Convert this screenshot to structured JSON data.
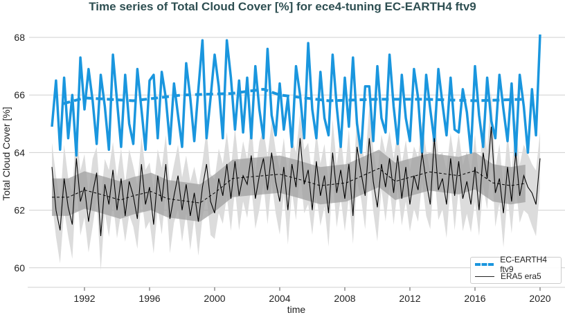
{
  "chart_data": {
    "type": "line",
    "title": "Time series of Total Cloud Cover [%] for ece4-tuning EC-EARTH4 ftv9",
    "xlabel": "time",
    "ylabel": "Total Cloud Cover [%]",
    "xlim": [
      1989.5,
      2021.5
    ],
    "ylim": [
      59.0,
      68.6
    ],
    "x_ticks": [
      "1992",
      "1996",
      "2000",
      "2004",
      "2008",
      "2012",
      "2016",
      "2020"
    ],
    "y_ticks": [
      "60",
      "62",
      "64",
      "66",
      "68"
    ],
    "grid": "horizontal",
    "legend_position": "bottom-right",
    "x_start": 1990.0,
    "x_step_years": 0.25,
    "series": [
      {
        "name": "EC-EARTH4 ftv9",
        "color": "#1a96de",
        "values": [
          64.9,
          66.5,
          64.1,
          66.6,
          64.5,
          66.0,
          63.9,
          67.3,
          65.5,
          66.9,
          65.8,
          64.3,
          66.7,
          65.6,
          64.1,
          67.4,
          65.8,
          64.2,
          66.7,
          65.0,
          64.3,
          66.9,
          65.5,
          64.1,
          66.5,
          66.7,
          64.5,
          66.8,
          65.9,
          64.3,
          66.4,
          65.3,
          64.2,
          67.1,
          65.9,
          64.4,
          66.2,
          67.9,
          64.5,
          65.9,
          67.4,
          66.3,
          64.5,
          67.9,
          66.6,
          64.8,
          66.5,
          64.7,
          66.6,
          64.5,
          67.0,
          65.5,
          64.5,
          67.6,
          65.3,
          64.6,
          66.4,
          64.8,
          65.9,
          64.2,
          67.0,
          66.0,
          64.5,
          67.8,
          65.5,
          64.5,
          66.8,
          65.2,
          64.6,
          67.4,
          65.6,
          64.2,
          66.6,
          64.9,
          67.3,
          65.0,
          64.0,
          66.3,
          66.3,
          64.4,
          67.0,
          65.2,
          64.7,
          67.4,
          65.6,
          64.3,
          66.7,
          65.2,
          64.4,
          66.9,
          65.9,
          64.0,
          66.7,
          65.5,
          64.4,
          66.9,
          65.7,
          64.6,
          66.6,
          64.8,
          64.7,
          66.2,
          65.4,
          64.0,
          67.0,
          65.3,
          64.2,
          66.6,
          65.1,
          64.5,
          66.7,
          65.5,
          64.4,
          66.4,
          63.9,
          66.7,
          65.6,
          64.0,
          66.2,
          64.6,
          68.1
        ],
        "trend": [
          [
            1990.7,
            65.7
          ],
          [
            1992,
            65.9
          ],
          [
            1995,
            65.8
          ],
          [
            1998,
            66.0
          ],
          [
            2001,
            66.05
          ],
          [
            2003,
            66.2
          ],
          [
            2004,
            66.0
          ],
          [
            2007,
            65.8
          ],
          [
            2010,
            65.85
          ],
          [
            2013,
            65.85
          ],
          [
            2016,
            65.8
          ],
          [
            2019,
            65.85
          ]
        ]
      },
      {
        "name": "ERA5 era5",
        "color": "#000000",
        "values": [
          63.5,
          62.0,
          61.3,
          63.1,
          62.1,
          61.5,
          63.8,
          62.3,
          62.8,
          61.6,
          62.6,
          63.3,
          61.1,
          62.9,
          62.2,
          63.4,
          62.0,
          63.1,
          61.8,
          63.0,
          62.5,
          61.7,
          63.6,
          62.2,
          62.8,
          61.5,
          63.2,
          62.3,
          63.6,
          61.7,
          62.5,
          63.2,
          62.0,
          62.9,
          61.8,
          62.6,
          61.6,
          62.8,
          63.6,
          62.3,
          61.9,
          63.1,
          62.5,
          63.6,
          62.4,
          63.7,
          62.5,
          63.2,
          62.9,
          63.9,
          62.4,
          63.2,
          63.8,
          62.7,
          64.0,
          63.0,
          62.3,
          63.5,
          62.0,
          63.6,
          62.8,
          64.5,
          62.9,
          63.4,
          62.0,
          63.7,
          62.5,
          63.2,
          61.9,
          64.0,
          62.6,
          63.4,
          62.4,
          63.6,
          61.8,
          64.2,
          63.3,
          62.5,
          64.5,
          63.0,
          62.1,
          63.6,
          62.8,
          63.8,
          62.6,
          63.9,
          62.4,
          63.5,
          62.2,
          63.2,
          62.7,
          64.0,
          63.0,
          62.2,
          64.5,
          62.7,
          63.1,
          62.2,
          63.8,
          62.5,
          63.7,
          62.4,
          63.0,
          62.2,
          63.5,
          62.0,
          64.0,
          63.1,
          64.9,
          62.6,
          63.1,
          61.9,
          63.5,
          62.3,
          64.0,
          62.5,
          63.2,
          62.8,
          62.6,
          62.2,
          63.8
        ],
        "trend": [
          [
            1990,
            62.45
          ],
          [
            1991,
            62.45
          ],
          [
            1992,
            62.7
          ],
          [
            1993,
            62.55
          ],
          [
            1994.2,
            62.35
          ],
          [
            1995,
            62.5
          ],
          [
            1996.1,
            62.65
          ],
          [
            1997.1,
            62.4
          ],
          [
            1999.1,
            62.25
          ],
          [
            2000,
            62.6
          ],
          [
            2001.1,
            63.1
          ],
          [
            2002,
            63.15
          ],
          [
            2003,
            63.2
          ],
          [
            2004,
            63.25
          ],
          [
            2005,
            63.1
          ],
          [
            2006.5,
            62.85
          ],
          [
            2008.1,
            62.95
          ],
          [
            2010.1,
            63.45
          ],
          [
            2011.1,
            63.0
          ],
          [
            2013.2,
            63.33
          ],
          [
            2015,
            63.2
          ],
          [
            2016,
            63.37
          ],
          [
            2017.1,
            62.95
          ],
          [
            2018.2,
            62.85
          ],
          [
            2019.1,
            62.93
          ]
        ],
        "inner_band_halfwidth": 0.65,
        "outer_band_halfwidth": 1.2
      }
    ]
  },
  "legend": {
    "items": [
      "EC-EARTH4 ftv9",
      "ERA5 era5"
    ]
  }
}
